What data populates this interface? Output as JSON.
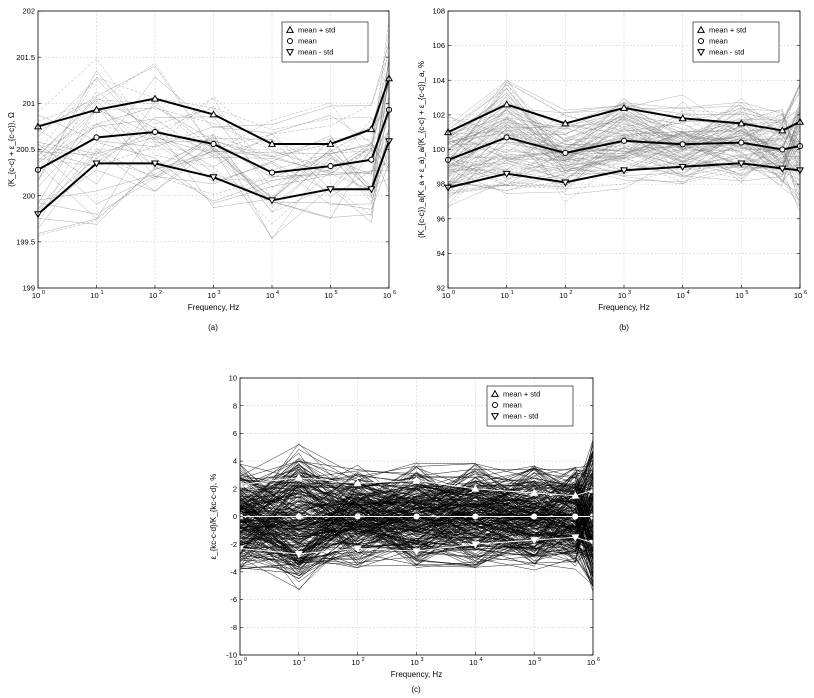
{
  "chart_data": [
    {
      "id": "a",
      "type": "line",
      "caption": "(a)",
      "xlabel": "Frequency, Hz",
      "ylabel": "(K_{c-c} + ε_{c-c}), Ω",
      "xscale": "log",
      "x": [
        1,
        10,
        100,
        1000,
        10000,
        100000,
        500000,
        1000000
      ],
      "ylim": [
        199,
        202
      ],
      "yticks": [
        "199",
        "199.5",
        "200",
        "200.5",
        "201",
        "201.5",
        "202"
      ],
      "grid": true,
      "legend_position": "top-right",
      "series": [
        {
          "name": "mean + std",
          "marker": "triangle-up",
          "values": [
            200.75,
            200.93,
            201.05,
            200.88,
            200.56,
            200.56,
            200.72,
            201.27
          ]
        },
        {
          "name": "mean",
          "marker": "circle",
          "values": [
            200.28,
            200.63,
            200.69,
            200.56,
            200.25,
            200.32,
            200.39,
            200.93
          ]
        },
        {
          "name": "mean - std",
          "marker": "triangle-down",
          "values": [
            199.8,
            200.35,
            200.35,
            200.2,
            199.95,
            200.07,
            200.07,
            200.59
          ]
        }
      ],
      "background_series_count": 40,
      "background_spread": 0.4,
      "background_color": "#666666"
    },
    {
      "id": "b",
      "type": "line",
      "caption": "(b)",
      "xlabel": "Frequency, Hz",
      "ylabel": "(K_{c-c})_a(K_a + ε_a)_a/(K_{c-c} + ε_{c-c})_a, %",
      "xscale": "log",
      "x": [
        1,
        10,
        100,
        1000,
        10000,
        100000,
        500000,
        1000000
      ],
      "ylim": [
        92,
        108
      ],
      "yticks": [
        "92",
        "94",
        "96",
        "98",
        "100",
        "102",
        "104",
        "106",
        "108"
      ],
      "grid": true,
      "legend_position": "top-right",
      "series": [
        {
          "name": "mean + std",
          "marker": "triangle-up",
          "values": [
            101.0,
            102.6,
            101.5,
            102.4,
            101.8,
            101.5,
            101.1,
            101.6
          ]
        },
        {
          "name": "mean",
          "marker": "circle",
          "values": [
            99.4,
            100.7,
            99.8,
            100.5,
            100.3,
            100.4,
            100.0,
            100.2
          ]
        },
        {
          "name": "mean - std",
          "marker": "triangle-down",
          "values": [
            97.8,
            98.6,
            98.1,
            98.8,
            99.0,
            99.2,
            98.9,
            98.8
          ]
        }
      ],
      "background_series_count": 100,
      "background_spread": 1.6,
      "background_color": "#777777"
    },
    {
      "id": "c",
      "type": "line",
      "caption": "(c)",
      "xlabel": "Frequency, Hz",
      "ylabel": "ε_{kc-c-d}/K_{kc-c-d}, %",
      "xscale": "log",
      "x": [
        1,
        10,
        100,
        1000,
        10000,
        100000,
        500000,
        1000000
      ],
      "ylim": [
        -10,
        10
      ],
      "yticks": [
        "-10",
        "-8",
        "-6",
        "-4",
        "-2",
        "0",
        "2",
        "4",
        "6",
        "8",
        "10"
      ],
      "grid": true,
      "legend_position": "top-right",
      "series": [
        {
          "name": "mean + std",
          "marker": "triangle-up",
          "values": [
            2.3,
            2.8,
            2.4,
            2.6,
            2.0,
            1.7,
            1.5,
            1.9
          ]
        },
        {
          "name": "mean",
          "marker": "circle",
          "values": [
            0,
            0,
            0,
            0,
            0,
            0,
            0,
            0
          ]
        },
        {
          "name": "mean - std",
          "marker": "triangle-down",
          "values": [
            -2.3,
            -2.7,
            -2.3,
            -2.5,
            -2.0,
            -1.7,
            -1.5,
            -1.9
          ]
        }
      ],
      "background_series_count": 260,
      "background_spread": 2.2,
      "background_color": "#000000"
    }
  ]
}
